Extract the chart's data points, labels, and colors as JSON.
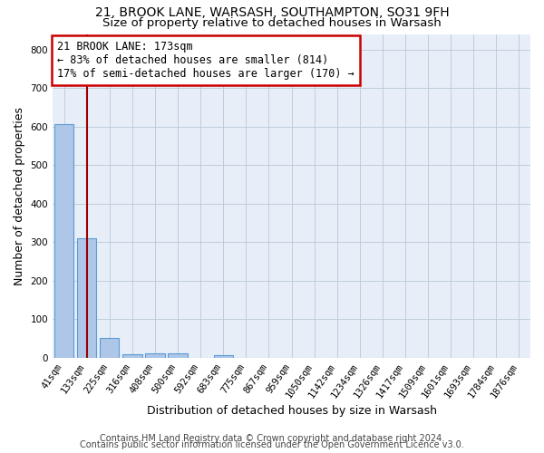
{
  "title1": "21, BROOK LANE, WARSASH, SOUTHAMPTON, SO31 9FH",
  "title2": "Size of property relative to detached houses in Warsash",
  "xlabel": "Distribution of detached houses by size in Warsash",
  "ylabel": "Number of detached properties",
  "footer1": "Contains HM Land Registry data © Crown copyright and database right 2024.",
  "footer2": "Contains public sector information licensed under the Open Government Licence v3.0.",
  "bin_labels": [
    "41sqm",
    "133sqm",
    "225sqm",
    "316sqm",
    "408sqm",
    "500sqm",
    "592sqm",
    "683sqm",
    "775sqm",
    "867sqm",
    "959sqm",
    "1050sqm",
    "1142sqm",
    "1234sqm",
    "1326sqm",
    "1417sqm",
    "1509sqm",
    "1601sqm",
    "1693sqm",
    "1784sqm",
    "1876sqm"
  ],
  "bar_values": [
    607,
    310,
    52,
    10,
    11,
    12,
    1,
    8,
    0,
    0,
    0,
    0,
    0,
    0,
    0,
    0,
    0,
    0,
    0,
    0,
    0
  ],
  "bar_color": "#aec6e8",
  "bar_edge_color": "#5b9bd5",
  "background_color": "#e8eef8",
  "grid_color": "#b8c8d8",
  "vline_color": "#990000",
  "annotation_text": "21 BROOK LANE: 173sqm\n← 83% of detached houses are smaller (814)\n17% of semi-detached houses are larger (170) →",
  "annotation_box_color": "white",
  "annotation_box_edge": "#cc0000",
  "ylim": [
    0,
    840
  ],
  "yticks": [
    0,
    100,
    200,
    300,
    400,
    500,
    600,
    700,
    800
  ],
  "title_fontsize": 10,
  "subtitle_fontsize": 9.5,
  "axis_label_fontsize": 9,
  "tick_fontsize": 7.5,
  "annot_fontsize": 8.5,
  "footer_fontsize": 7
}
